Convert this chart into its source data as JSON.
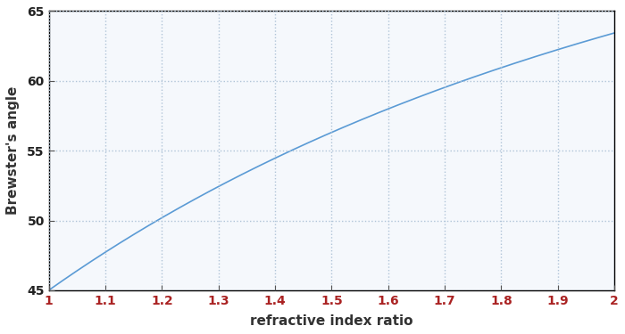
{
  "xlabel": "refractive index ratio",
  "ylabel": "Brewster's angle",
  "xlim": [
    1.0,
    2.0
  ],
  "ylim": [
    45,
    65
  ],
  "xticks": [
    1.0,
    1.1,
    1.2,
    1.3,
    1.4,
    1.5,
    1.6,
    1.7,
    1.8,
    1.9,
    2.0
  ],
  "yticks": [
    45,
    50,
    55,
    60,
    65
  ],
  "line_color": "#5b9bd5",
  "grid_color": "#b0c4d8",
  "background_color": "#ffffff",
  "axes_bg_color": "#f5f8fc",
  "tick_color_x": "#aa2222",
  "tick_color_y": "#222222",
  "xlabel_color": "#333333",
  "ylabel_color": "#333333",
  "figsize": [
    7.0,
    3.75
  ],
  "dpi": 100,
  "line_width": 1.2
}
